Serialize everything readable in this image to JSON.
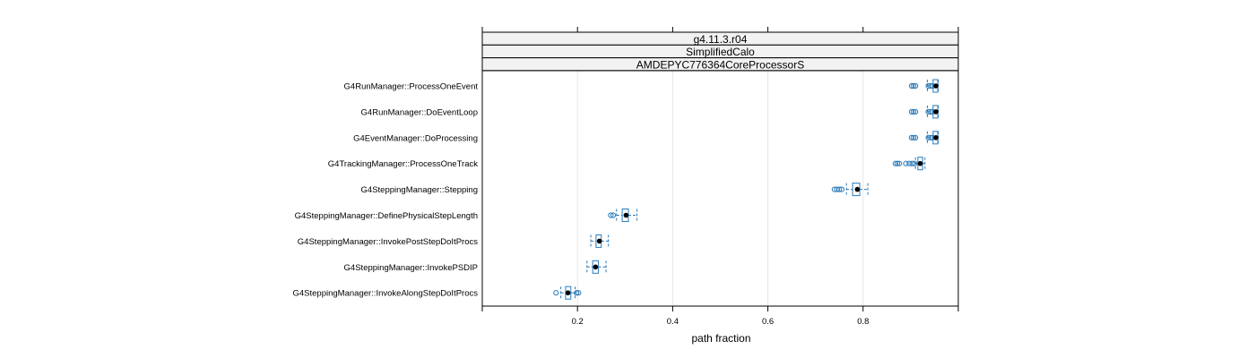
{
  "chart_data": {
    "type": "box",
    "strips": [
      "g4.11.3.r04",
      "SimplifiedCalo",
      "AMDEPYC776364CoreProcessorS"
    ],
    "xlabel": "path fraction",
    "xlim": [
      0.0,
      1.0
    ],
    "xticks": [
      {
        "value": 0.2,
        "label": "0.2"
      },
      {
        "value": 0.4,
        "label": "0.4"
      },
      {
        "value": 0.6,
        "label": "0.6"
      },
      {
        "value": 0.8,
        "label": "0.8"
      }
    ],
    "grid": true,
    "colors": {
      "box": "#2b7bb9",
      "median": "#000000",
      "grid": "#e6e6e6",
      "strip_bg": "#f2f2f2"
    },
    "categories": [
      {
        "label": "G4RunManager::ProcessOneEvent",
        "wmin": 0.935,
        "q1": 0.947,
        "median": 0.953,
        "q3": 0.957,
        "wmax": 0.958,
        "outliers": [
          0.902,
          0.906,
          0.91,
          0.937,
          0.942,
          0.946
        ]
      },
      {
        "label": "G4RunManager::DoEventLoop",
        "wmin": 0.935,
        "q1": 0.947,
        "median": 0.953,
        "q3": 0.957,
        "wmax": 0.958,
        "outliers": [
          0.902,
          0.906,
          0.91,
          0.937,
          0.942,
          0.946
        ]
      },
      {
        "label": "G4EventManager::DoProcessing",
        "wmin": 0.935,
        "q1": 0.947,
        "median": 0.953,
        "q3": 0.957,
        "wmax": 0.958,
        "outliers": [
          0.902,
          0.906,
          0.91,
          0.937,
          0.942,
          0.946
        ]
      },
      {
        "label": "G4TrackingManager::ProcessOneTrack",
        "wmin": 0.91,
        "q1": 0.915,
        "median": 0.92,
        "q3": 0.925,
        "wmax": 0.93,
        "outliers": [
          0.868,
          0.872,
          0.876,
          0.89,
          0.897,
          0.903,
          0.908
        ]
      },
      {
        "label": "G4SteppingManager::Stepping",
        "wmin": 0.765,
        "q1": 0.778,
        "median": 0.788,
        "q3": 0.793,
        "wmax": 0.81,
        "outliers": [
          0.74,
          0.745,
          0.75,
          0.755
        ]
      },
      {
        "label": "G4SteppingManager::DefinePhysicalStepLength",
        "wmin": 0.282,
        "q1": 0.294,
        "median": 0.302,
        "q3": 0.307,
        "wmax": 0.325,
        "outliers": [
          0.27,
          0.275
        ]
      },
      {
        "label": "G4SteppingManager::InvokePostStepDoItProcs",
        "wmin": 0.228,
        "q1": 0.239,
        "median": 0.246,
        "q3": 0.25,
        "wmax": 0.265
      },
      {
        "label": "G4SteppingManager::InvokePSDIP",
        "wmin": 0.22,
        "q1": 0.232,
        "median": 0.238,
        "q3": 0.244,
        "wmax": 0.26
      },
      {
        "label": "G4SteppingManager::InvokeAlongStepDoItProcs",
        "wmin": 0.165,
        "q1": 0.175,
        "median": 0.18,
        "q3": 0.186,
        "wmax": 0.195,
        "outliers": [
          0.155,
          0.198,
          0.202
        ]
      }
    ]
  }
}
